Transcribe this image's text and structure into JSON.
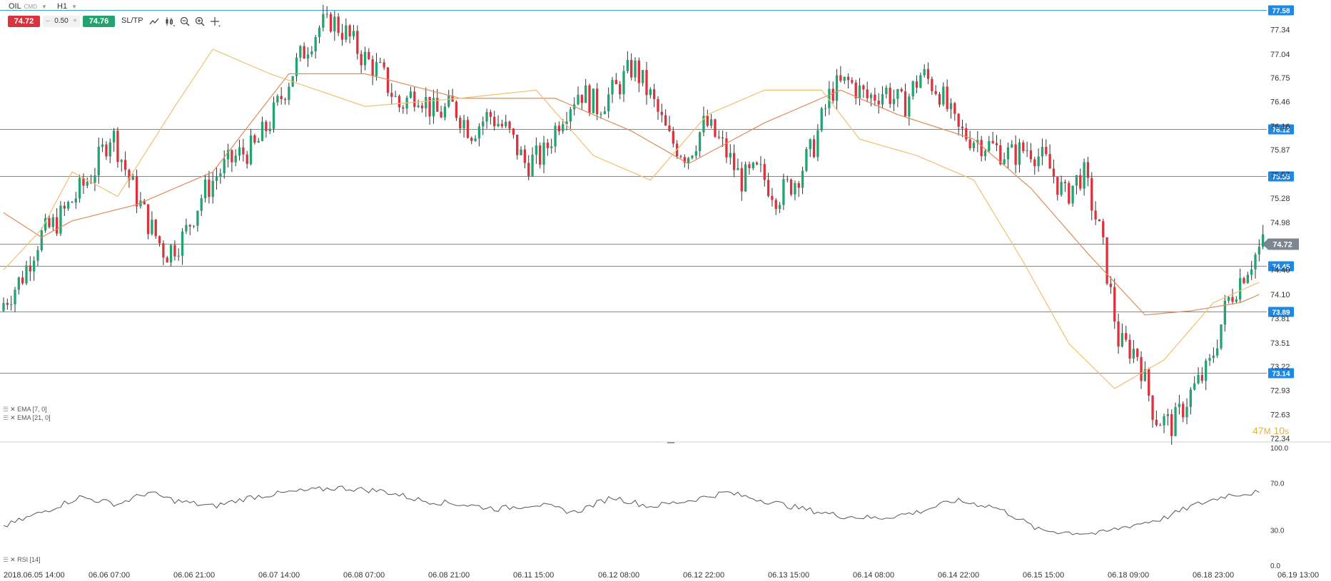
{
  "toolbar": {
    "symbol": "OIL",
    "symbol_type": "CMD",
    "timeframe": "H1",
    "sell_price": "74.72",
    "spread": "0.50",
    "spread_minus": "–",
    "spread_plus": "+",
    "buy_price": "74.76",
    "sltp_label": "SL/TP"
  },
  "icons": [
    "line-chart-icon",
    "candles-icon",
    "zoom-out-icon",
    "zoom-in-icon",
    "crosshair-icon"
  ],
  "legend": {
    "ema7": "EMA [7, 0]",
    "ema21": "EMA [21, 0]",
    "rsi": "RSI [14]"
  },
  "countdown": {
    "minutes": "47",
    "unit_m": "M",
    "seconds": "10",
    "unit_s": "s"
  },
  "colors": {
    "bull": "#22a370",
    "bear": "#d9343d",
    "ema7": "#f0c070",
    "ema21": "#e08a5a",
    "level_line": "#3d9be0",
    "price_tag": "#1e88e5",
    "current_tag": "#7d8590"
  },
  "chart_data": [
    {
      "type": "candlestick",
      "instrument": "OIL",
      "timeframe": "H1",
      "y_ticks": [
        "77.34",
        "77.04",
        "76.75",
        "76.46",
        "76.16",
        "75.87",
        "75.57",
        "75.28",
        "74.98",
        "74.40",
        "74.10",
        "73.81",
        "73.51",
        "73.22",
        "72.93",
        "72.63",
        "72.34"
      ],
      "ylim": [
        72.34,
        77.58
      ],
      "x_ticks": [
        "2018.06.05 14:00",
        "06.06 07:00",
        "06.06 21:00",
        "06.07 14:00",
        "06.08 07:00",
        "06.08 21:00",
        "06.11 15:00",
        "06.12 08:00",
        "06.12 22:00",
        "06.13 15:00",
        "06.14 08:00",
        "06.14 22:00",
        "06.15 15:00",
        "06.18 09:00",
        "06.18 23:00",
        "06.19 13:00"
      ],
      "horizontal_levels": [
        "77.58",
        "76.12",
        "75.55",
        "74.45",
        "73.89",
        "73.14"
      ],
      "current_price": "74.72",
      "series": [
        {
          "name": "EMA [7, 0]"
        },
        {
          "name": "EMA [21, 0]"
        }
      ],
      "waypoints_close": [
        74.0,
        74.3,
        74.8,
        75.0,
        75.3,
        75.6,
        76.1,
        75.5,
        75.0,
        74.6,
        74.8,
        75.3,
        75.6,
        75.8,
        75.9,
        76.3,
        76.8,
        77.2,
        77.5,
        77.3,
        77.0,
        76.8,
        76.4,
        76.6,
        76.3,
        76.4,
        76.1,
        76.3,
        76.1,
        75.7,
        75.8,
        76.3,
        76.6,
        76.4,
        76.6,
        76.9,
        76.5,
        76.0,
        75.8,
        76.2,
        75.9,
        75.5,
        75.6,
        75.3,
        75.5,
        75.9,
        76.6,
        76.7,
        76.5,
        76.6,
        76.4,
        76.8,
        76.6,
        76.1,
        76.0,
        75.9,
        75.8,
        75.9,
        75.7,
        75.3,
        75.6,
        74.8,
        73.5,
        73.4,
        72.6,
        72.5,
        72.9,
        73.2,
        74.0,
        74.4,
        74.72
      ],
      "ema7_waypoints": [
        [
          0,
          74.4
        ],
        [
          10,
          74.9
        ],
        [
          18,
          75.6
        ],
        [
          30,
          75.3
        ],
        [
          45,
          76.4
        ],
        [
          55,
          77.1
        ],
        [
          70,
          76.8
        ],
        [
          95,
          76.4
        ],
        [
          120,
          76.5
        ],
        [
          140,
          76.6
        ],
        [
          155,
          75.8
        ],
        [
          170,
          75.5
        ],
        [
          185,
          76.3
        ],
        [
          200,
          76.6
        ],
        [
          215,
          76.6
        ],
        [
          225,
          76.0
        ],
        [
          240,
          75.8
        ],
        [
          255,
          75.5
        ],
        [
          268,
          74.5
        ],
        [
          280,
          73.5
        ],
        [
          292,
          72.95
        ],
        [
          305,
          73.3
        ],
        [
          318,
          74.0
        ],
        [
          330,
          74.25
        ]
      ],
      "ema21_waypoints": [
        [
          0,
          75.1
        ],
        [
          10,
          74.8
        ],
        [
          18,
          75.0
        ],
        [
          35,
          75.2
        ],
        [
          55,
          75.6
        ],
        [
          75,
          76.8
        ],
        [
          95,
          76.8
        ],
        [
          120,
          76.5
        ],
        [
          145,
          76.5
        ],
        [
          165,
          76.1
        ],
        [
          180,
          75.7
        ],
        [
          200,
          76.2
        ],
        [
          220,
          76.6
        ],
        [
          235,
          76.3
        ],
        [
          255,
          76.0
        ],
        [
          270,
          75.4
        ],
        [
          285,
          74.6
        ],
        [
          300,
          73.85
        ],
        [
          312,
          73.9
        ],
        [
          325,
          74.0
        ],
        [
          330,
          74.1
        ]
      ]
    },
    {
      "type": "line",
      "name": "RSI [14]",
      "y_ticks": [
        "100.0",
        "70.0",
        "30.0",
        "0.0"
      ],
      "ylim": [
        0,
        100
      ],
      "waypoints": [
        [
          0,
          33
        ],
        [
          10,
          45
        ],
        [
          20,
          58
        ],
        [
          30,
          52
        ],
        [
          38,
          62
        ],
        [
          45,
          55
        ],
        [
          55,
          50
        ],
        [
          65,
          58
        ],
        [
          75,
          62
        ],
        [
          88,
          66
        ],
        [
          100,
          63
        ],
        [
          110,
          55
        ],
        [
          120,
          52
        ],
        [
          130,
          48
        ],
        [
          140,
          52
        ],
        [
          150,
          45
        ],
        [
          160,
          58
        ],
        [
          170,
          50
        ],
        [
          180,
          55
        ],
        [
          190,
          62
        ],
        [
          200,
          55
        ],
        [
          210,
          48
        ],
        [
          220,
          42
        ],
        [
          230,
          40
        ],
        [
          240,
          45
        ],
        [
          250,
          55
        ],
        [
          260,
          50
        ],
        [
          265,
          43
        ],
        [
          272,
          30
        ],
        [
          280,
          28
        ],
        [
          288,
          27
        ],
        [
          295,
          33
        ],
        [
          305,
          40
        ],
        [
          312,
          50
        ],
        [
          322,
          60
        ],
        [
          330,
          62
        ]
      ]
    }
  ]
}
